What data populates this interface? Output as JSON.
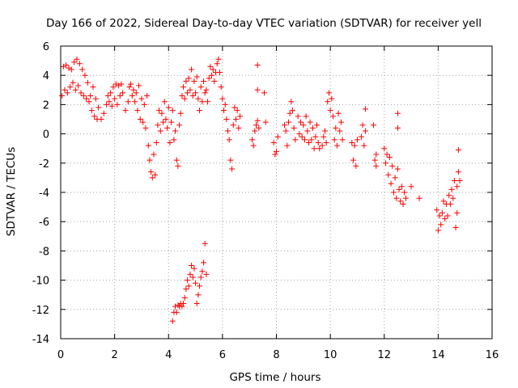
{
  "chart_data": {
    "type": "scatter",
    "title": "Day 166 of 2022, Sidereal Day-to-day VTEC variation (SDTVAR) for receiver yell",
    "xlabel": "GPS time / hours",
    "ylabel": "SDTVAR / TECUs",
    "xlim": [
      0,
      16
    ],
    "ylim": [
      -14,
      6
    ],
    "xticks": [
      0,
      2,
      4,
      6,
      8,
      10,
      12,
      14,
      16
    ],
    "yticks": [
      -14,
      -12,
      -10,
      -8,
      -6,
      -4,
      -2,
      0,
      2,
      4,
      6
    ],
    "grid": true,
    "marker": "+",
    "color": "#ff0000",
    "series": [
      {
        "name": "SDTVAR",
        "points": [
          [
            0.05,
            2.6
          ],
          [
            0.1,
            4.6
          ],
          [
            0.15,
            3.0
          ],
          [
            0.2,
            4.7
          ],
          [
            0.25,
            2.8
          ],
          [
            0.3,
            4.5
          ],
          [
            0.35,
            3.2
          ],
          [
            0.4,
            4.4
          ],
          [
            0.45,
            3.5
          ],
          [
            0.5,
            4.9
          ],
          [
            0.55,
            3.0
          ],
          [
            0.6,
            5.1
          ],
          [
            0.65,
            3.3
          ],
          [
            0.7,
            4.8
          ],
          [
            0.75,
            2.8
          ],
          [
            0.8,
            4.4
          ],
          [
            0.85,
            2.6
          ],
          [
            0.9,
            4.0
          ],
          [
            0.95,
            2.4
          ],
          [
            1.0,
            3.5
          ],
          [
            1.05,
            2.2
          ],
          [
            1.1,
            2.6
          ],
          [
            1.15,
            1.6
          ],
          [
            1.2,
            3.2
          ],
          [
            1.25,
            1.2
          ],
          [
            1.3,
            2.4
          ],
          [
            1.35,
            1.0
          ],
          [
            1.4,
            1.8
          ],
          [
            1.5,
            1.0
          ],
          [
            1.6,
            1.4
          ],
          [
            1.7,
            2.0
          ],
          [
            1.75,
            2.6
          ],
          [
            1.8,
            2.2
          ],
          [
            1.85,
            2.8
          ],
          [
            1.9,
            1.9
          ],
          [
            1.95,
            3.2
          ],
          [
            2.0,
            2.4
          ],
          [
            2.05,
            3.4
          ],
          [
            2.1,
            2.0
          ],
          [
            2.15,
            3.3
          ],
          [
            2.2,
            2.6
          ],
          [
            2.25,
            3.4
          ],
          [
            2.3,
            2.8
          ],
          [
            2.4,
            1.6
          ],
          [
            2.5,
            2.2
          ],
          [
            2.55,
            3.2
          ],
          [
            2.6,
            3.4
          ],
          [
            2.65,
            2.6
          ],
          [
            2.7,
            3.0
          ],
          [
            2.75,
            2.2
          ],
          [
            2.8,
            2.8
          ],
          [
            2.85,
            1.6
          ],
          [
            2.9,
            3.3
          ],
          [
            2.95,
            1.0
          ],
          [
            3.0,
            2.4
          ],
          [
            3.05,
            0.8
          ],
          [
            3.1,
            2.0
          ],
          [
            3.15,
            0.4
          ],
          [
            3.2,
            2.6
          ],
          [
            3.25,
            -0.8
          ],
          [
            3.3,
            -1.8
          ],
          [
            3.35,
            -2.6
          ],
          [
            3.4,
            -3.0
          ],
          [
            3.45,
            -1.4
          ],
          [
            3.5,
            -2.8
          ],
          [
            3.55,
            -0.6
          ],
          [
            3.6,
            0.6
          ],
          [
            3.65,
            1.6
          ],
          [
            3.7,
            0.2
          ],
          [
            3.75,
            1.4
          ],
          [
            3.8,
            0.8
          ],
          [
            3.85,
            2.2
          ],
          [
            3.9,
            1.0
          ],
          [
            3.95,
            0.4
          ],
          [
            4.0,
            1.8
          ],
          [
            4.05,
            -0.6
          ],
          [
            4.1,
            0.8
          ],
          [
            4.15,
            1.6
          ],
          [
            4.2,
            -0.4
          ],
          [
            4.25,
            0.2
          ],
          [
            4.3,
            -1.8
          ],
          [
            4.35,
            -2.2
          ],
          [
            4.4,
            0.6
          ],
          [
            4.45,
            1.4
          ],
          [
            4.5,
            2.6
          ],
          [
            4.55,
            3.2
          ],
          [
            4.6,
            2.4
          ],
          [
            4.65,
            3.6
          ],
          [
            4.7,
            2.8
          ],
          [
            4.75,
            3.8
          ],
          [
            4.8,
            3.0
          ],
          [
            4.85,
            4.4
          ],
          [
            4.9,
            2.6
          ],
          [
            4.95,
            3.6
          ],
          [
            5.0,
            2.8
          ],
          [
            5.05,
            3.9
          ],
          [
            5.1,
            2.4
          ],
          [
            5.15,
            1.6
          ],
          [
            5.2,
            3.2
          ],
          [
            5.25,
            2.2
          ],
          [
            5.3,
            3.6
          ],
          [
            5.35,
            2.8
          ],
          [
            5.4,
            3.0
          ],
          [
            5.45,
            2.2
          ],
          [
            5.5,
            3.8
          ],
          [
            5.55,
            4.6
          ],
          [
            5.6,
            4.0
          ],
          [
            5.65,
            4.4
          ],
          [
            5.7,
            3.6
          ],
          [
            5.75,
            4.2
          ],
          [
            5.8,
            4.8
          ],
          [
            5.85,
            5.1
          ],
          [
            5.9,
            4.2
          ],
          [
            5.95,
            3.2
          ],
          [
            6.0,
            2.4
          ],
          [
            6.05,
            1.6
          ],
          [
            6.1,
            2.0
          ],
          [
            6.15,
            1.0
          ],
          [
            6.2,
            0.2
          ],
          [
            6.25,
            -0.4
          ],
          [
            6.3,
            -1.8
          ],
          [
            6.35,
            -2.4
          ],
          [
            6.4,
            0.6
          ],
          [
            6.45,
            1.8
          ],
          [
            6.5,
            1.0
          ],
          [
            6.55,
            1.6
          ],
          [
            6.6,
            0.4
          ],
          [
            6.65,
            1.2
          ],
          [
            7.1,
            -0.4
          ],
          [
            7.15,
            -0.8
          ],
          [
            7.2,
            0.2
          ],
          [
            7.25,
            0.6
          ],
          [
            7.3,
            0.9
          ],
          [
            7.35,
            0.4
          ],
          [
            7.3,
            3.0
          ],
          [
            7.3,
            4.7
          ],
          [
            7.55,
            2.8
          ],
          [
            7.6,
            0.8
          ],
          [
            7.9,
            -0.6
          ],
          [
            7.95,
            -1.4
          ],
          [
            8.0,
            -1.2
          ],
          [
            8.05,
            -0.2
          ],
          [
            8.3,
            0.6
          ],
          [
            8.35,
            0.2
          ],
          [
            8.4,
            -0.8
          ],
          [
            8.45,
            0.8
          ],
          [
            8.5,
            1.4
          ],
          [
            8.55,
            2.2
          ],
          [
            8.6,
            1.6
          ],
          [
            8.65,
            0.4
          ],
          [
            8.7,
            -0.4
          ],
          [
            8.8,
            1.2
          ],
          [
            8.85,
            0.0
          ],
          [
            8.9,
            0.8
          ],
          [
            8.95,
            -0.2
          ],
          [
            9.0,
            0.6
          ],
          [
            9.05,
            -0.4
          ],
          [
            9.1,
            1.2
          ],
          [
            9.15,
            0.2
          ],
          [
            9.2,
            -0.6
          ],
          [
            9.25,
            0.8
          ],
          [
            9.3,
            -0.4
          ],
          [
            9.35,
            0.4
          ],
          [
            9.4,
            -1.0
          ],
          [
            9.45,
            -0.2
          ],
          [
            9.5,
            0.6
          ],
          [
            9.55,
            -0.6
          ],
          [
            9.6,
            -1.0
          ],
          [
            9.7,
            -0.8
          ],
          [
            9.75,
            -0.2
          ],
          [
            9.8,
            0.2
          ],
          [
            9.85,
            -0.6
          ],
          [
            9.9,
            2.2
          ],
          [
            9.95,
            2.8
          ],
          [
            10.0,
            1.6
          ],
          [
            10.05,
            2.4
          ],
          [
            10.1,
            1.2
          ],
          [
            10.15,
            -0.4
          ],
          [
            10.2,
            0.4
          ],
          [
            10.25,
            -0.8
          ],
          [
            10.3,
            1.4
          ],
          [
            10.35,
            0.2
          ],
          [
            10.4,
            0.8
          ],
          [
            10.45,
            -0.4
          ],
          [
            10.8,
            -0.6
          ],
          [
            10.85,
            -1.8
          ],
          [
            10.9,
            -0.8
          ],
          [
            10.95,
            -2.2
          ],
          [
            11.0,
            -0.4
          ],
          [
            11.15,
            -0.2
          ],
          [
            11.2,
            0.6
          ],
          [
            11.25,
            -0.8
          ],
          [
            11.3,
            0.2
          ],
          [
            11.3,
            1.7
          ],
          [
            11.6,
            0.6
          ],
          [
            11.65,
            -1.8
          ],
          [
            11.7,
            -2.2
          ],
          [
            11.7,
            -1.4
          ],
          [
            12.0,
            -1.0
          ],
          [
            12.05,
            -2.0
          ],
          [
            12.1,
            -1.4
          ],
          [
            12.15,
            -2.8
          ],
          [
            12.2,
            -1.6
          ],
          [
            12.25,
            -3.4
          ],
          [
            12.3,
            -2.2
          ],
          [
            12.35,
            -4.0
          ],
          [
            12.4,
            -3.0
          ],
          [
            12.45,
            -4.4
          ],
          [
            12.5,
            -2.4
          ],
          [
            12.55,
            -3.8
          ],
          [
            12.6,
            -4.6
          ],
          [
            12.65,
            -3.6
          ],
          [
            12.7,
            -4.8
          ],
          [
            12.75,
            -4.0
          ],
          [
            12.8,
            -4.4
          ],
          [
            12.5,
            1.4
          ],
          [
            12.5,
            0.4
          ],
          [
            13.0,
            -3.6
          ],
          [
            13.3,
            -4.4
          ],
          [
            13.95,
            -5.2
          ],
          [
            14.0,
            -6.6
          ],
          [
            14.05,
            -5.6
          ],
          [
            14.1,
            -6.2
          ],
          [
            14.15,
            -5.4
          ],
          [
            14.2,
            -4.6
          ],
          [
            14.25,
            -5.8
          ],
          [
            14.3,
            -4.8
          ],
          [
            14.35,
            -5.6
          ],
          [
            14.4,
            -4.2
          ],
          [
            14.45,
            -4.8
          ],
          [
            14.5,
            -3.8
          ],
          [
            14.55,
            -4.4
          ],
          [
            14.6,
            -3.2
          ],
          [
            14.65,
            -6.4
          ],
          [
            14.7,
            -3.6
          ],
          [
            14.75,
            -2.6
          ],
          [
            14.8,
            -3.2
          ],
          [
            14.75,
            -1.1
          ],
          [
            14.7,
            -5.4
          ],
          [
            4.15,
            -12.8
          ],
          [
            4.2,
            -12.2
          ],
          [
            4.25,
            -11.8
          ],
          [
            4.3,
            -12.2
          ],
          [
            4.35,
            -11.7
          ],
          [
            4.4,
            -11.8
          ],
          [
            4.45,
            -11.6
          ],
          [
            4.5,
            -11.8
          ],
          [
            4.55,
            -11.6
          ],
          [
            4.6,
            -11.2
          ],
          [
            4.65,
            -10.6
          ],
          [
            4.7,
            -10.0
          ],
          [
            4.75,
            -10.4
          ],
          [
            4.8,
            -9.6
          ],
          [
            4.85,
            -9.0
          ],
          [
            4.9,
            -9.8
          ],
          [
            4.95,
            -9.2
          ],
          [
            5.0,
            -10.2
          ],
          [
            5.05,
            -11.6
          ],
          [
            5.1,
            -11.0
          ],
          [
            5.15,
            -10.4
          ],
          [
            5.2,
            -9.8
          ],
          [
            5.25,
            -9.4
          ],
          [
            5.3,
            -8.8
          ],
          [
            5.35,
            -7.5
          ],
          [
            5.4,
            -9.6
          ]
        ]
      }
    ]
  }
}
